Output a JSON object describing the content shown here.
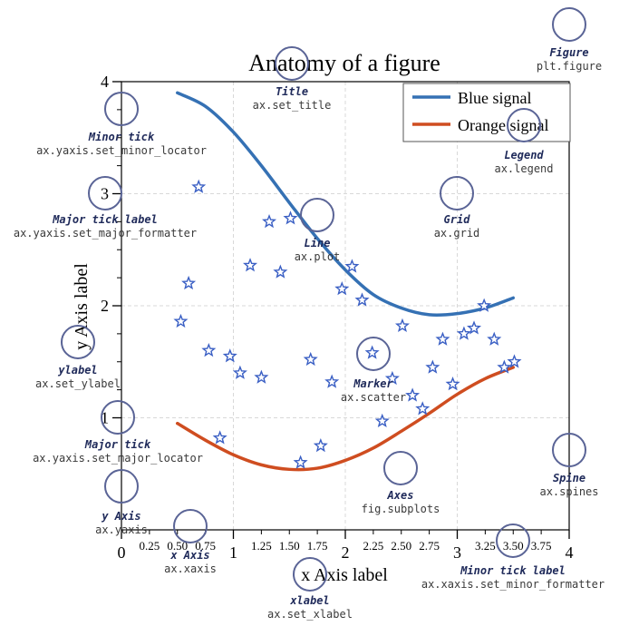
{
  "chart_data": {
    "type": "line",
    "title": "Anatomy of a figure",
    "xlabel": "x Axis label",
    "ylabel": "y Axis label",
    "xlim": [
      0,
      4
    ],
    "ylim": [
      0,
      4
    ],
    "grid": true,
    "legend_position": "top-right",
    "major_xticks": [
      0,
      1,
      2,
      3,
      4
    ],
    "major_xtick_labels": [
      "0",
      "1",
      "2",
      "3",
      "4"
    ],
    "minor_xticks": [
      0.25,
      0.5,
      0.75,
      1.25,
      1.5,
      1.75,
      2.25,
      2.5,
      2.75,
      3.25,
      3.5,
      3.75
    ],
    "minor_xtick_labels": [
      "0.25",
      "0.50",
      "0.75",
      "1.25",
      "1.50",
      "1.75",
      "2.25",
      "2.50",
      "2.75",
      "3.25",
      "3.50",
      "3.75"
    ],
    "major_yticks": [
      1,
      2,
      3,
      4
    ],
    "major_ytick_labels": [
      "1",
      "2",
      "3",
      "4"
    ],
    "minor_yticks": [
      1.25,
      1.5,
      1.75,
      2.25,
      2.5,
      2.75,
      3.25,
      3.5,
      3.75
    ],
    "series": [
      {
        "name": "Blue signal",
        "color": "#3571b4",
        "x": [
          0.5,
          0.75,
          1.0,
          1.25,
          1.5,
          1.75,
          2.0,
          2.25,
          2.5,
          2.75,
          3.0,
          3.25,
          3.5
        ],
        "y": [
          3.9,
          3.78,
          3.55,
          3.25,
          2.92,
          2.6,
          2.32,
          2.1,
          1.98,
          1.92,
          1.93,
          1.98,
          2.07
        ]
      },
      {
        "name": "Orange signal",
        "color": "#cf4d20",
        "x": [
          0.5,
          0.75,
          1.0,
          1.25,
          1.5,
          1.75,
          2.0,
          2.25,
          2.5,
          2.75,
          3.0,
          3.25,
          3.5
        ],
        "y": [
          0.95,
          0.8,
          0.67,
          0.58,
          0.54,
          0.55,
          0.62,
          0.73,
          0.88,
          1.04,
          1.21,
          1.35,
          1.45
        ]
      },
      {
        "name": "Marker",
        "type": "scatter",
        "color": "#3a5fc4",
        "x": [
          0.53,
          0.6,
          0.69,
          0.78,
          0.88,
          0.97,
          1.06,
          1.15,
          1.25,
          1.32,
          1.42,
          1.51,
          1.6,
          1.69,
          1.78,
          1.88,
          1.97,
          2.06,
          2.15,
          2.24,
          2.33,
          2.42,
          2.51,
          2.6,
          2.69,
          2.78,
          2.87,
          2.96,
          3.06,
          3.15,
          3.24,
          3.33,
          3.42,
          3.51
        ],
        "y": [
          1.86,
          2.2,
          3.06,
          1.6,
          0.82,
          1.55,
          1.4,
          2.36,
          1.36,
          2.75,
          2.3,
          2.78,
          0.6,
          1.52,
          0.75,
          1.32,
          2.15,
          2.35,
          2.05,
          1.58,
          0.97,
          1.35,
          1.82,
          1.2,
          1.08,
          1.45,
          1.7,
          1.3,
          1.75,
          1.8,
          2.0,
          1.7,
          1.45,
          1.5
        ]
      }
    ]
  },
  "annotations": [
    {
      "id": "figure",
      "title": "Figure",
      "code": "plt.figure"
    },
    {
      "id": "title",
      "title": "Title",
      "code": "ax.set_title"
    },
    {
      "id": "minor-tick",
      "title": "Minor tick",
      "code": "ax.yaxis.set_minor_locator"
    },
    {
      "id": "legend",
      "title": "Legend",
      "code": "ax.legend"
    },
    {
      "id": "major-tick-label",
      "title": "Major tick label",
      "code": "ax.yaxis.set_major_formatter"
    },
    {
      "id": "grid",
      "title": "Grid",
      "code": "ax.grid"
    },
    {
      "id": "line",
      "title": "Line",
      "code": "ax.plot"
    },
    {
      "id": "ylabel",
      "title": "ylabel",
      "code": "ax.set_ylabel"
    },
    {
      "id": "marker",
      "title": "Marker",
      "code": "ax.scatter"
    },
    {
      "id": "major-tick",
      "title": "Major tick",
      "code": "ax.yaxis.set_major_locator"
    },
    {
      "id": "spine",
      "title": "Spine",
      "code": "ax.spines"
    },
    {
      "id": "axes",
      "title": "Axes",
      "code": "fig.subplots"
    },
    {
      "id": "y-axis",
      "title": "y Axis",
      "code": "ax.yaxis"
    },
    {
      "id": "x-axis",
      "title": "x Axis",
      "code": "ax.xaxis"
    },
    {
      "id": "minor-tick-label",
      "title": "Minor tick label",
      "code": "ax.xaxis.set_minor_formatter"
    },
    {
      "id": "xlabel",
      "title": "xlabel",
      "code": "ax.set_xlabel"
    }
  ]
}
